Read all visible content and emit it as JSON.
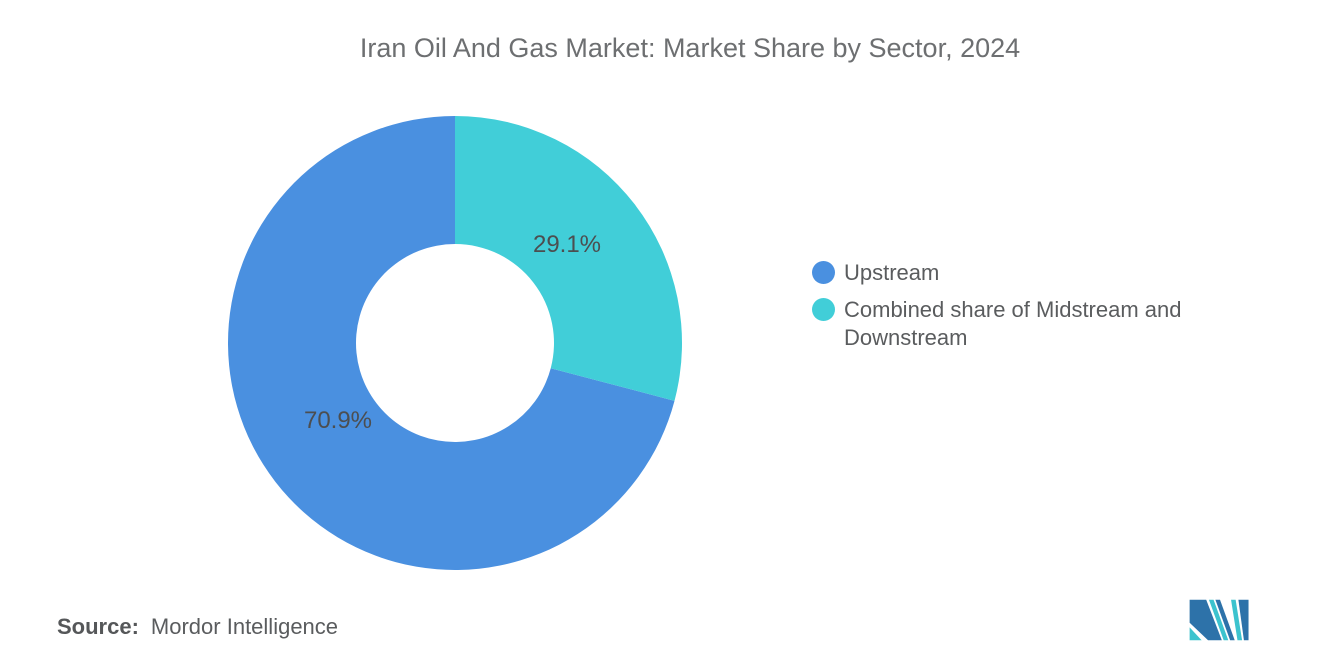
{
  "title": "Iran Oil And Gas Market: Market Share by Sector, 2024",
  "chart_data": {
    "type": "pie",
    "subtype": "donut",
    "title": "Iran Oil And Gas Market: Market Share by Sector, 2024",
    "start_angle_deg": -90,
    "direction": "ccw",
    "inner_radius_ratio": 0.435,
    "legend_position": "right",
    "series": [
      {
        "name": "Upstream",
        "value": 70.9,
        "label": "70.9%",
        "color": "#4a90e0"
      },
      {
        "name": "Combined share of Midstream and Downstream",
        "value": 29.1,
        "label": "29.1%",
        "color": "#41ced8"
      }
    ]
  },
  "footer": {
    "source_label": "Source:",
    "source_value": "Mordor Intelligence"
  },
  "colors": {
    "title_text": "#6d6f71",
    "slice_label_text": "#4c4e50",
    "legend_text": "#5a5c5e",
    "logo_navy": "#2d72a9",
    "logo_teal": "#3cc3ce",
    "background": "#ffffff"
  }
}
